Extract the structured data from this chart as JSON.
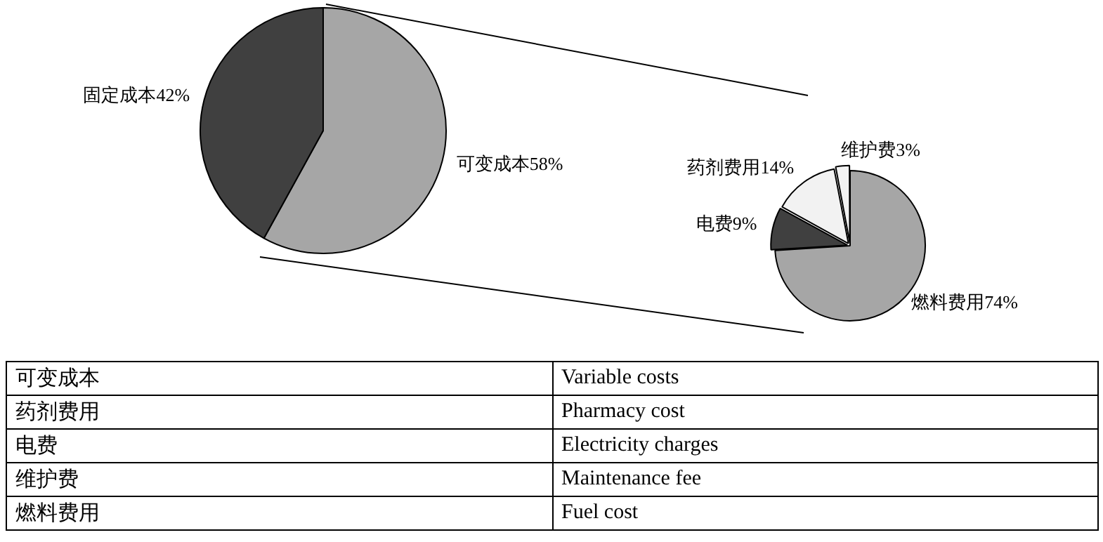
{
  "chart_data": [
    {
      "type": "pie",
      "categories": [
        "可变成本",
        "固定成本"
      ],
      "values": [
        58,
        42
      ],
      "value_labels": [
        "58%",
        "42%"
      ],
      "colors": [
        "#a6a6a6",
        "#404040"
      ]
    },
    {
      "type": "pie",
      "categories": [
        "燃料费用",
        "电费",
        "药剂费用",
        "维护费"
      ],
      "values": [
        74,
        9,
        14,
        3
      ],
      "value_labels": [
        "74%",
        "9%",
        "14%",
        "3%"
      ],
      "colors": [
        "#a6a6a6",
        "#404040",
        "#f2f2f2",
        "#f2f2f2"
      ]
    },
    {
      "type": "other",
      "annotations": [
        "可变成本",
        "Variable costs",
        "药剂费用",
        "Pharmacy cost",
        "电费",
        "Electricity charges",
        "维护费",
        "Maintenance fee",
        "燃料费用",
        "Fuel cost"
      ]
    }
  ]
}
